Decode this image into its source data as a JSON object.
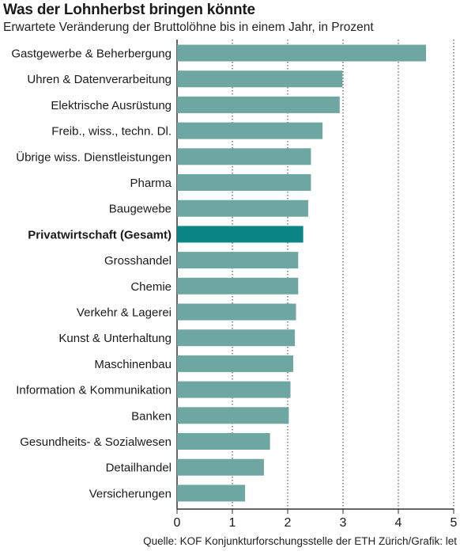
{
  "chart_data": {
    "type": "bar",
    "orientation": "horizontal",
    "title": "Was der Lohnherbst bringen könnte",
    "subtitle": "Erwartete Veränderung der Bruttolöhne bis in einem Jahr, in Prozent",
    "categories": [
      "Gastgewerbe & Beherbergung",
      "Uhren & Datenverarbeitung",
      "Elektrische Ausrüstung",
      "Freib., wiss., techn. Dl.",
      "Übrige wiss. Dienstleistungen",
      "Pharma",
      "Baugewebe",
      "Privatwirtschaft (Gesamt)",
      "Grosshandel",
      "Chemie",
      "Verkehr & Lagerei",
      "Kunst & Unterhaltung",
      "Maschinenbau",
      "Information & Kommunikation",
      "Banken",
      "Gesundheits- & Sozialwesen",
      "Detailhandel",
      "Versicherungen"
    ],
    "values": [
      4.5,
      2.99,
      2.94,
      2.63,
      2.42,
      2.42,
      2.37,
      2.28,
      2.19,
      2.19,
      2.15,
      2.13,
      2.1,
      2.05,
      2.02,
      1.68,
      1.57,
      1.23
    ],
    "highlight": "Privatwirtschaft (Gesamt)",
    "xlim": [
      0,
      5
    ],
    "xticks": [
      "0",
      "1",
      "2",
      "3",
      "4",
      "5"
    ],
    "xlabel": "",
    "ylabel": "",
    "grid": "vertical dotted",
    "colors": {
      "bar": "#6ea6a2",
      "highlight": "#0b8585",
      "grid": "#333333"
    }
  },
  "source": "Quelle: KOF Konjunkturforschungsstelle der ETH Zürich/Grafik: let"
}
